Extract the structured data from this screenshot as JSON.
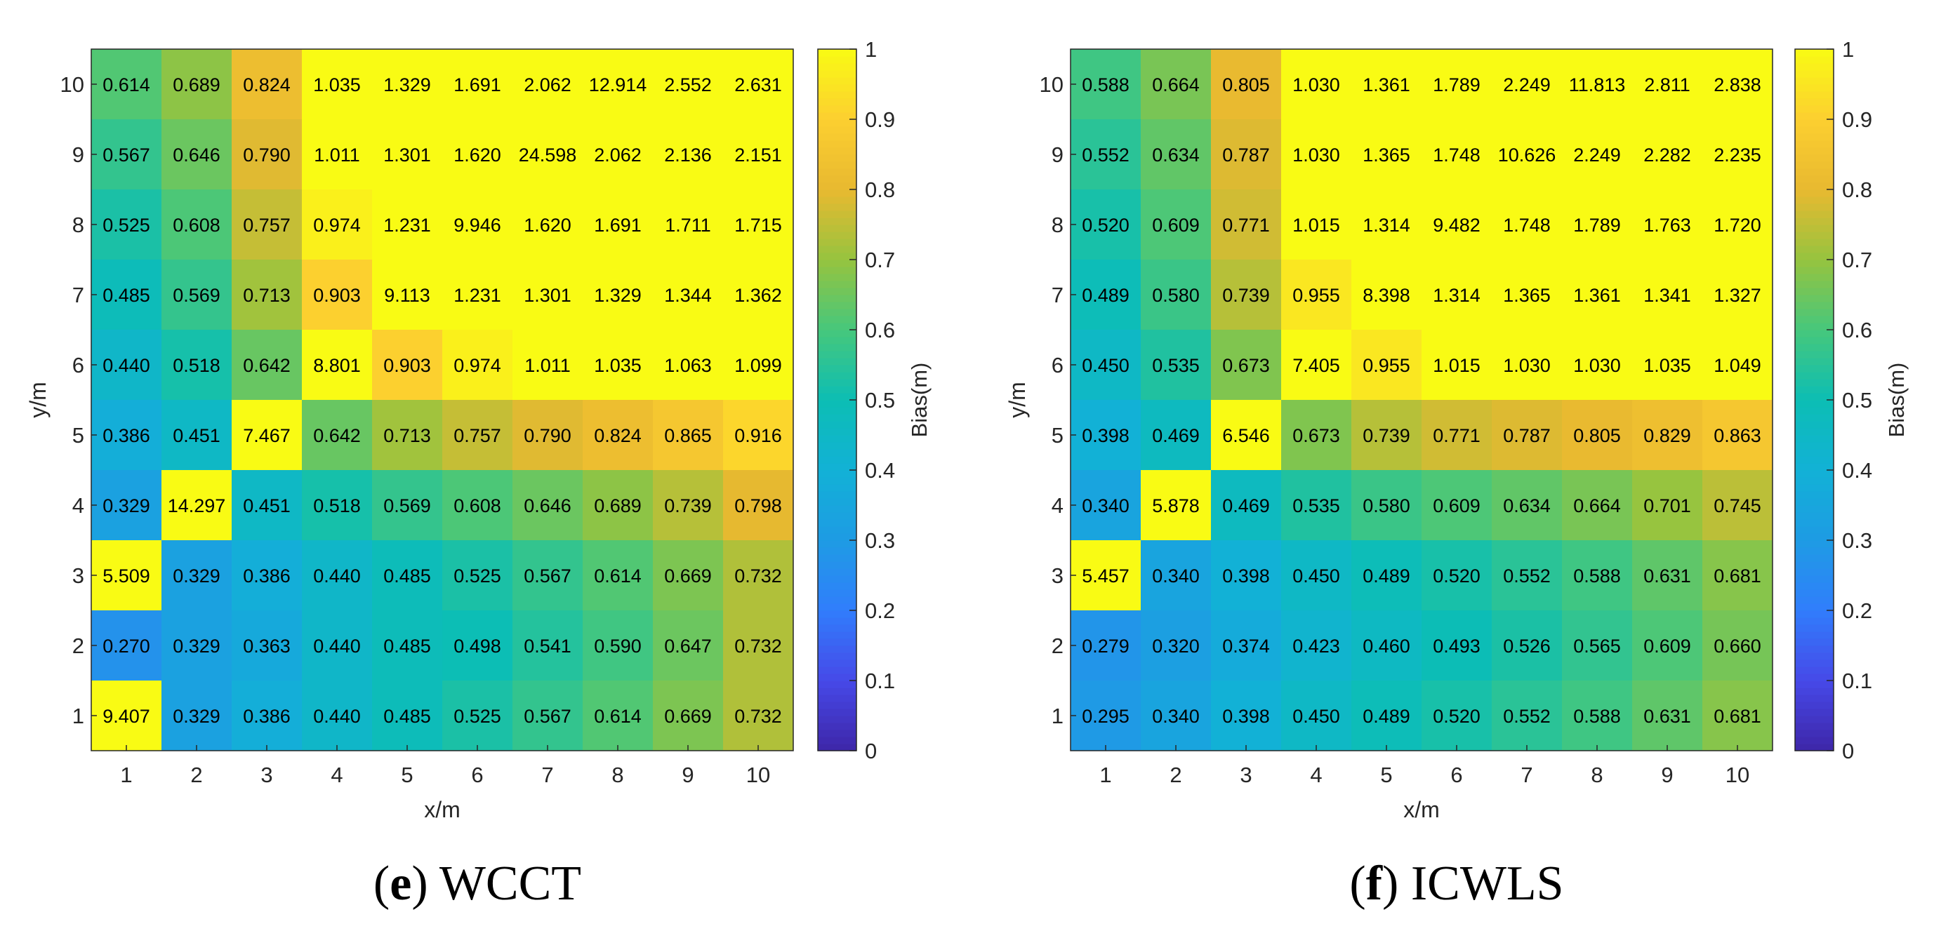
{
  "chart_data": [
    {
      "type": "heatmap",
      "caption_letter": "e",
      "caption_text": " WCCT",
      "xlabel": "x/m",
      "ylabel": "y/m",
      "x_ticks": [
        "1",
        "2",
        "3",
        "4",
        "5",
        "6",
        "7",
        "8",
        "9",
        "10"
      ],
      "y_ticks": [
        "1",
        "2",
        "3",
        "4",
        "5",
        "6",
        "7",
        "8",
        "9",
        "10"
      ],
      "colorbar": {
        "label": "Bias(m)",
        "min": 0,
        "max": 1,
        "ticks": [
          "0",
          "0.1",
          "0.2",
          "0.3",
          "0.4",
          "0.5",
          "0.6",
          "0.7",
          "0.8",
          "0.9",
          "1"
        ]
      },
      "values": [
        [
          "0.614",
          "0.689",
          "0.824",
          "1.035",
          "1.329",
          "1.691",
          "2.062",
          "12.914",
          "2.552",
          "2.631"
        ],
        [
          "0.567",
          "0.646",
          "0.790",
          "1.011",
          "1.301",
          "1.620",
          "24.598",
          "2.062",
          "2.136",
          "2.151"
        ],
        [
          "0.525",
          "0.608",
          "0.757",
          "0.974",
          "1.231",
          "9.946",
          "1.620",
          "1.691",
          "1.711",
          "1.715"
        ],
        [
          "0.485",
          "0.569",
          "0.713",
          "0.903",
          "9.113",
          "1.231",
          "1.301",
          "1.329",
          "1.344",
          "1.362"
        ],
        [
          "0.440",
          "0.518",
          "0.642",
          "8.801",
          "0.903",
          "0.974",
          "1.011",
          "1.035",
          "1.063",
          "1.099"
        ],
        [
          "0.386",
          "0.451",
          "7.467",
          "0.642",
          "0.713",
          "0.757",
          "0.790",
          "0.824",
          "0.865",
          "0.916"
        ],
        [
          "0.329",
          "14.297",
          "0.451",
          "0.518",
          "0.569",
          "0.608",
          "0.646",
          "0.689",
          "0.739",
          "0.798"
        ],
        [
          "5.509",
          "0.329",
          "0.386",
          "0.440",
          "0.485",
          "0.525",
          "0.567",
          "0.614",
          "0.669",
          "0.732"
        ],
        [
          "0.270",
          "0.329",
          "0.363",
          "0.440",
          "0.485",
          "0.498",
          "0.541",
          "0.590",
          "0.647",
          "0.732"
        ],
        [
          "9.407",
          "0.329",
          "0.386",
          "0.440",
          "0.485",
          "0.525",
          "0.567",
          "0.614",
          "0.669",
          "0.732"
        ]
      ]
    },
    {
      "type": "heatmap",
      "caption_letter": "f",
      "caption_text": " ICWLS",
      "xlabel": "x/m",
      "ylabel": "y/m",
      "x_ticks": [
        "1",
        "2",
        "3",
        "4",
        "5",
        "6",
        "7",
        "8",
        "9",
        "10"
      ],
      "y_ticks": [
        "1",
        "2",
        "3",
        "4",
        "5",
        "6",
        "7",
        "8",
        "9",
        "10"
      ],
      "colorbar": {
        "label": "Bias(m)",
        "min": 0,
        "max": 1,
        "ticks": [
          "0",
          "0.1",
          "0.2",
          "0.3",
          "0.4",
          "0.5",
          "0.6",
          "0.7",
          "0.8",
          "0.9",
          "1"
        ]
      },
      "values": [
        [
          "0.588",
          "0.664",
          "0.805",
          "1.030",
          "1.361",
          "1.789",
          "2.249",
          "11.813",
          "2.811",
          "2.838"
        ],
        [
          "0.552",
          "0.634",
          "0.787",
          "1.030",
          "1.365",
          "1.748",
          "10.626",
          "2.249",
          "2.282",
          "2.235"
        ],
        [
          "0.520",
          "0.609",
          "0.771",
          "1.015",
          "1.314",
          "9.482",
          "1.748",
          "1.789",
          "1.763",
          "1.720"
        ],
        [
          "0.489",
          "0.580",
          "0.739",
          "0.955",
          "8.398",
          "1.314",
          "1.365",
          "1.361",
          "1.341",
          "1.327"
        ],
        [
          "0.450",
          "0.535",
          "0.673",
          "7.405",
          "0.955",
          "1.015",
          "1.030",
          "1.030",
          "1.035",
          "1.049"
        ],
        [
          "0.398",
          "0.469",
          "6.546",
          "0.673",
          "0.739",
          "0.771",
          "0.787",
          "0.805",
          "0.829",
          "0.863"
        ],
        [
          "0.340",
          "5.878",
          "0.469",
          "0.535",
          "0.580",
          "0.609",
          "0.634",
          "0.664",
          "0.701",
          "0.745"
        ],
        [
          "5.457",
          "0.340",
          "0.398",
          "0.450",
          "0.489",
          "0.520",
          "0.552",
          "0.588",
          "0.631",
          "0.681"
        ],
        [
          "0.279",
          "0.320",
          "0.374",
          "0.423",
          "0.460",
          "0.493",
          "0.526",
          "0.565",
          "0.609",
          "0.660"
        ],
        [
          "0.295",
          "0.340",
          "0.398",
          "0.450",
          "0.489",
          "0.520",
          "0.552",
          "0.588",
          "0.631",
          "0.681"
        ]
      ]
    }
  ]
}
